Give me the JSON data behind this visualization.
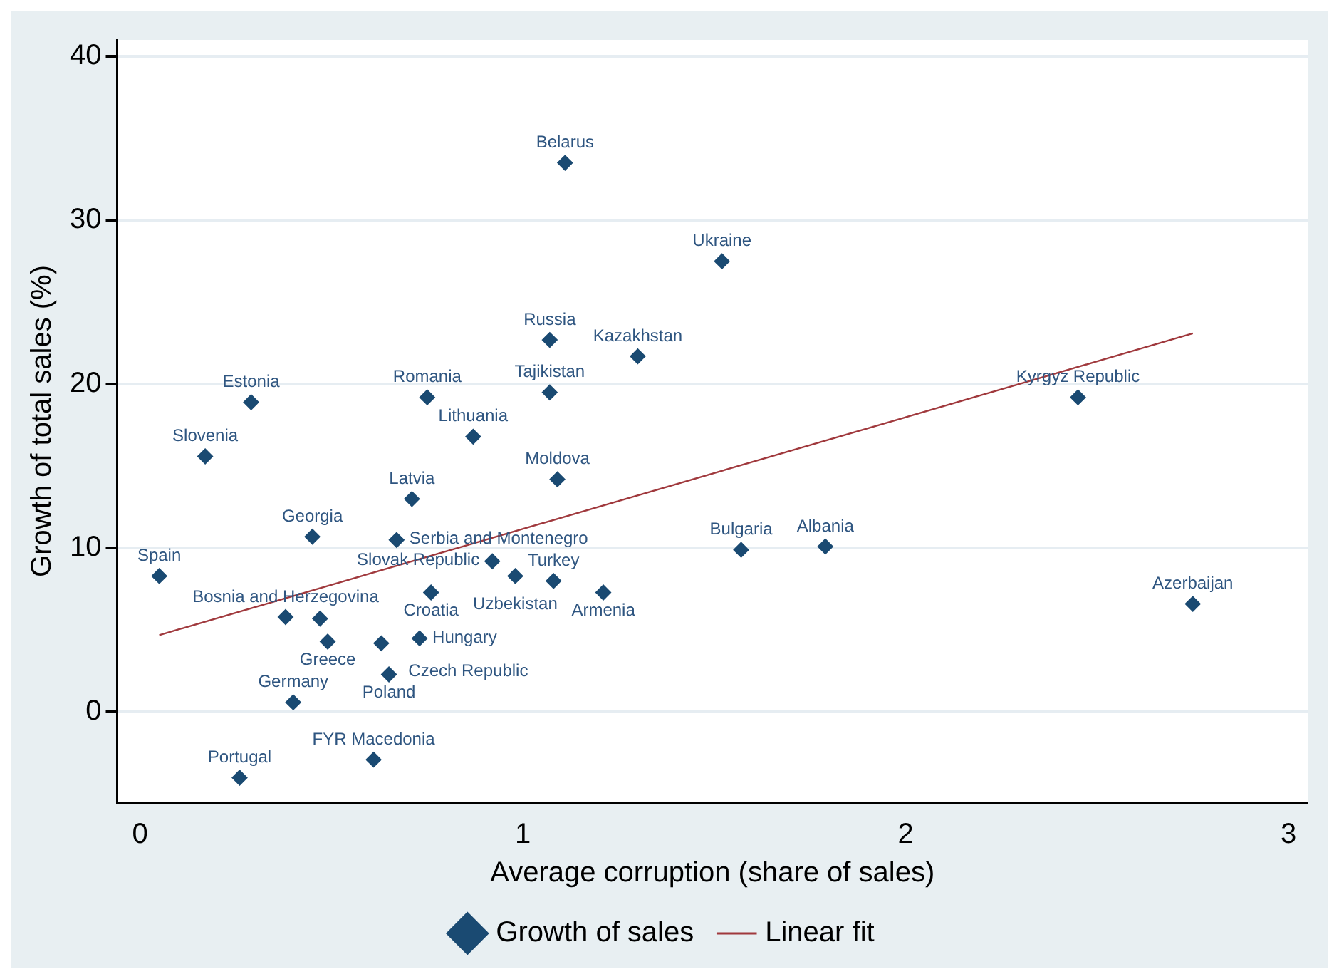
{
  "chart_data": {
    "type": "scatter",
    "xlabel": "Average corruption (share of sales)",
    "ylabel": "Growth of total sales (%)",
    "xlim": [
      -0.06,
      3.05
    ],
    "xticks": [
      0,
      1,
      2,
      3
    ],
    "ylim": [
      -5.5,
      41
    ],
    "yticks": [
      0,
      10,
      20,
      30,
      40
    ],
    "grid": "y",
    "legend": "bottom",
    "series": [
      {
        "name": "Growth of sales",
        "marker": "diamond",
        "color": "#1a4a72",
        "x": [
          1.11,
          1.52,
          1.07,
          1.3,
          1.07,
          0.75,
          0.29,
          0.87,
          0.17,
          1.09,
          0.71,
          0.45,
          0.67,
          0.92,
          0.98,
          1.08,
          1.21,
          0.76,
          0.05,
          0.38,
          0.47,
          0.49,
          0.63,
          0.73,
          0.65,
          0.4,
          0.61,
          0.26,
          1.57,
          1.79,
          2.45,
          2.75
        ],
        "values": [
          33.5,
          27.5,
          22.7,
          21.7,
          19.5,
          19.2,
          18.9,
          16.8,
          15.6,
          14.2,
          13.0,
          10.7,
          10.5,
          9.2,
          8.3,
          8.0,
          7.3,
          7.3,
          8.3,
          5.8,
          5.7,
          4.3,
          4.2,
          4.5,
          2.3,
          0.6,
          -2.9,
          -4.0,
          9.9,
          10.1,
          19.2,
          6.6
        ]
      },
      {
        "name": "Linear fit",
        "type": "line",
        "marker": "none",
        "color": "#a0393d",
        "x": [
          0.05,
          2.75
        ],
        "values": [
          4.7,
          23.1
        ]
      }
    ],
    "annotations": [
      {
        "text": "Belarus",
        "x": 1.11,
        "y": 33.5
      },
      {
        "text": "Ukraine",
        "x": 1.52,
        "y": 27.5
      },
      {
        "text": "Russia",
        "x": 1.07,
        "y": 22.7
      },
      {
        "text": "Kazakhstan",
        "x": 1.3,
        "y": 21.7
      },
      {
        "text": "Tajikistan",
        "x": 1.07,
        "y": 19.5
      },
      {
        "text": "Romania",
        "x": 0.75,
        "y": 19.2
      },
      {
        "text": "Estonia",
        "x": 0.29,
        "y": 18.9
      },
      {
        "text": "Lithuania",
        "x": 0.87,
        "y": 16.8
      },
      {
        "text": "Slovenia",
        "x": 0.17,
        "y": 15.6
      },
      {
        "text": "Moldova",
        "x": 1.09,
        "y": 14.2
      },
      {
        "text": "Latvia",
        "x": 0.71,
        "y": 13.0
      },
      {
        "text": "Georgia",
        "x": 0.45,
        "y": 10.7
      },
      {
        "text": "Serbia and Montenegro",
        "x": 0.67,
        "y": 10.5
      },
      {
        "text": "Slovak Republic",
        "x": 0.92,
        "y": 9.2
      },
      {
        "text": "Uzbekistan",
        "x": 0.98,
        "y": 8.3
      },
      {
        "text": "Turkey",
        "x": 1.08,
        "y": 8.0
      },
      {
        "text": "Armenia",
        "x": 1.21,
        "y": 7.3
      },
      {
        "text": "Croatia",
        "x": 0.76,
        "y": 7.3
      },
      {
        "text": "Spain",
        "x": 0.05,
        "y": 8.3
      },
      {
        "text": "Bosnia and Herzegovina",
        "x": 0.38,
        "y": 5.8
      },
      {
        "text": "Greece",
        "x": 0.49,
        "y": 4.3
      },
      {
        "text": "Czech Republic",
        "x": 0.63,
        "y": 4.2
      },
      {
        "text": "Hungary",
        "x": 0.73,
        "y": 4.5
      },
      {
        "text": "Poland",
        "x": 0.65,
        "y": 2.3
      },
      {
        "text": "Germany",
        "x": 0.4,
        "y": 0.6
      },
      {
        "text": "FYR Macedonia",
        "x": 0.61,
        "y": -2.9
      },
      {
        "text": "Portugal",
        "x": 0.26,
        "y": -4.0
      },
      {
        "text": "Bulgaria",
        "x": 1.57,
        "y": 9.9
      },
      {
        "text": "Albania",
        "x": 1.79,
        "y": 10.1
      },
      {
        "text": "Kyrgyz Republic",
        "x": 2.45,
        "y": 19.2
      },
      {
        "text": "Azerbaijan",
        "x": 2.75,
        "y": 6.6
      }
    ]
  }
}
